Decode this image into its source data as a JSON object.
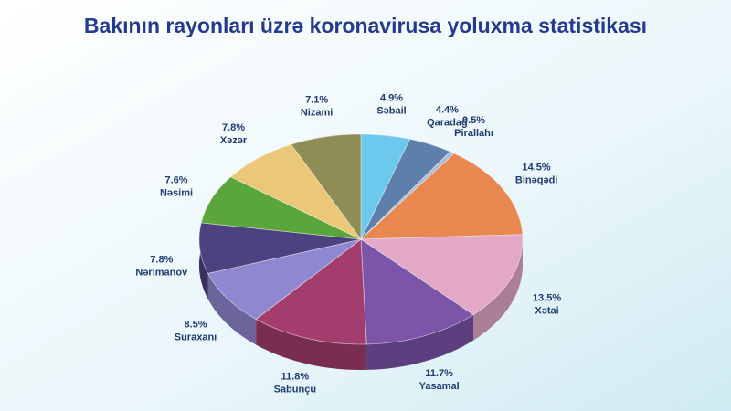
{
  "chart_data": {
    "type": "pie",
    "title": "Bakının rayonları üzrə koronavirusa yoluxma statistikası",
    "categories": [
      "Səbail",
      "Qaradağ",
      "Pirallahı",
      "Binəqədi",
      "Xətai",
      "Yasamal",
      "Sabunçu",
      "Suraxanı",
      "Nərimanov",
      "Nəsimi",
      "Xəzər",
      "Nizami"
    ],
    "values": [
      4.9,
      4.4,
      0.5,
      14.5,
      13.5,
      11.7,
      11.8,
      8.5,
      7.8,
      7.6,
      7.8,
      7.1
    ],
    "value_labels": [
      "4.9%",
      "4.4%",
      "0.5%",
      "14.5%",
      "13.5%",
      "11.7%",
      "11.8%",
      "8.5%",
      "7.8%",
      "7.6%",
      "7.8%",
      "7.1%"
    ],
    "colors": [
      "#6cc8ec",
      "#5d7fa9",
      "#a9bdd6",
      "#e8874f",
      "#e3a8c6",
      "#7a55a8",
      "#a33d6e",
      "#8f87cf",
      "#4d4180",
      "#5aa63c",
      "#ebc878",
      "#8f8d55"
    ]
  }
}
